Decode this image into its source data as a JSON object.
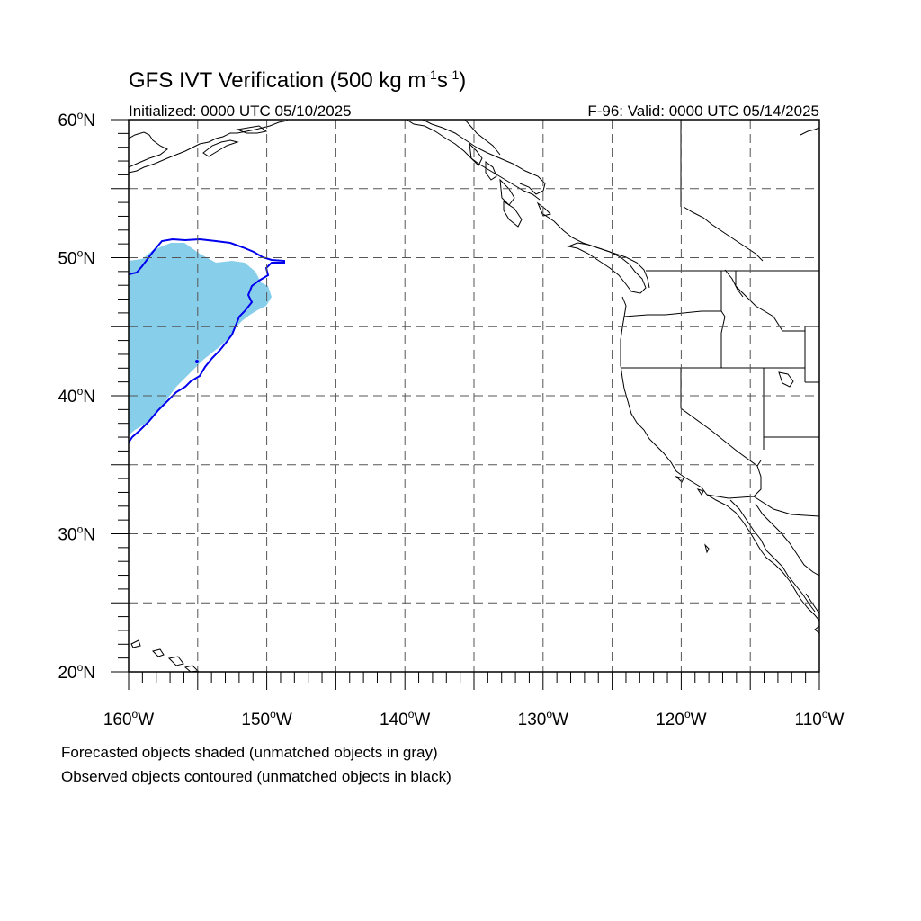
{
  "title": {
    "main": "GFS IVT Verification (500 kg m",
    "exp1": "-1",
    "mid": "s",
    "exp2": "-1",
    "end": ")"
  },
  "subtitle_left": "Initialized: 0000 UTC 05/10/2025",
  "subtitle_right": "F-96: Valid: 0000 UTC 05/14/2025",
  "lat_ticks": [
    {
      "value": 60,
      "label": "60",
      "hemi": "N"
    },
    {
      "value": 50,
      "label": "50",
      "hemi": "N"
    },
    {
      "value": 40,
      "label": "40",
      "hemi": "N"
    },
    {
      "value": 30,
      "label": "30",
      "hemi": "N"
    },
    {
      "value": 20,
      "label": "20",
      "hemi": "N"
    }
  ],
  "lon_ticks": [
    {
      "value": -160,
      "label": "160",
      "hemi": "W"
    },
    {
      "value": -150,
      "label": "150",
      "hemi": "W"
    },
    {
      "value": -140,
      "label": "140",
      "hemi": "W"
    },
    {
      "value": -130,
      "label": "130",
      "hemi": "W"
    },
    {
      "value": -120,
      "label": "120",
      "hemi": "W"
    },
    {
      "value": -110,
      "label": "110",
      "hemi": "W"
    }
  ],
  "map_extent": {
    "lon": [
      -160,
      -110
    ],
    "lat": [
      20,
      60
    ]
  },
  "grid": {
    "spacing_deg": 5,
    "style": "dashed"
  },
  "colors": {
    "forecast_matched": "#87ceeb",
    "observed_matched_contour": "#0000ee",
    "coastline": "#000000"
  },
  "legend_notes": [
    "Forecasted objects shaded (unmatched objects in gray)",
    "Observed objects contoured (unmatched objects in black)"
  ]
}
